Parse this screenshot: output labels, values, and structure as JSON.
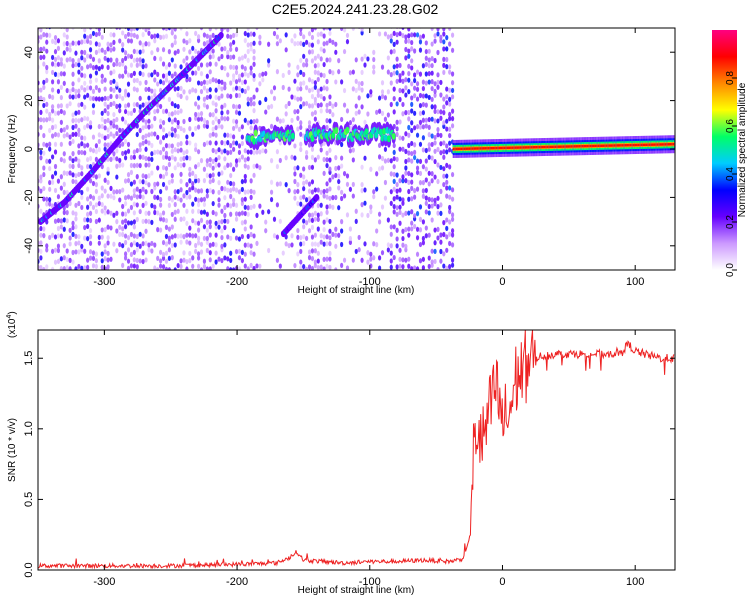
{
  "figure_title": "C2E5.2024.241.23.28.G02",
  "chart_data": [
    {
      "type": "heatmap",
      "title": "",
      "xlabel": "Height of straight line (km)",
      "ylabel": "Frequency (Hz)",
      "xlim": [
        -350,
        130
      ],
      "ylim": [
        -50,
        50
      ],
      "x_ticks": [
        -300,
        -200,
        -100,
        0,
        100
      ],
      "x_tick_labels": [
        "-300",
        "-200",
        "-100",
        "0",
        "100"
      ],
      "y_ticks": [
        -40,
        -20,
        0,
        20,
        40
      ],
      "y_tick_labels": [
        "-40",
        "-20",
        "0",
        "20",
        "40"
      ],
      "grid": false,
      "colorbar": {
        "label": "Normalized spectral amplitude",
        "range": [
          0,
          1
        ],
        "ticks": [
          0.0,
          0.2,
          0.4,
          0.6,
          0.8
        ],
        "tick_labels": [
          "0.0",
          "0.2",
          "0.4",
          "0.6",
          "0.8"
        ],
        "colors": [
          "#ffffff",
          "#cc99ff",
          "#6600ff",
          "#0000ff",
          "#00ccff",
          "#00ff66",
          "#ffff00",
          "#ff8800",
          "#ff0000",
          "#ff0080"
        ]
      },
      "features": [
        {
          "name": "diagonal streak",
          "x": [
            -348,
            -330,
            -310,
            -290,
            -270,
            -250,
            -230,
            -212
          ],
          "y": [
            -30,
            -22,
            -10,
            3,
            15,
            26,
            37,
            47
          ],
          "amplitude": 0.35
        },
        {
          "name": "band segment",
          "x": [
            -192,
            -158
          ],
          "y": [
            5,
            5
          ],
          "amplitude": 0.45
        },
        {
          "name": "band segment",
          "x": [
            -148,
            -82
          ],
          "y": [
            6,
            6
          ],
          "amplitude": 0.45
        },
        {
          "name": "faint diagonal",
          "x": [
            -165,
            -140
          ],
          "y": [
            -35,
            -20
          ],
          "amplitude": 0.2
        },
        {
          "name": "constant tone",
          "x": [
            -37,
            130
          ],
          "y": [
            0,
            2
          ],
          "amplitude": 0.75
        }
      ]
    },
    {
      "type": "line",
      "title": "",
      "xlabel": "Height of straight line (km)",
      "ylabel": "SNR (10 * v/v)",
      "y_multiplier_label": "(x10",
      "y_multiplier_exponent": "4",
      "y_multiplier_close": ")",
      "xlim": [
        -350,
        130
      ],
      "ylim": [
        0,
        1.7
      ],
      "x_ticks": [
        -300,
        -200,
        -100,
        0,
        100
      ],
      "x_tick_labels": [
        "-300",
        "-200",
        "-100",
        "0",
        "100"
      ],
      "y_ticks": [
        0.0,
        0.5,
        1.0,
        1.5
      ],
      "y_tick_labels": [
        "0.0",
        "0.5",
        "1.0",
        "1.5"
      ],
      "grid": false,
      "series": [
        {
          "color": "#ee2222",
          "x": [
            -350,
            -300,
            -250,
            -200,
            -170,
            -160,
            -155,
            -150,
            -120,
            -100,
            -80,
            -60,
            -40,
            -30,
            -24,
            -22,
            -20,
            -15,
            -10,
            -5,
            0,
            5,
            10,
            20,
            30,
            40,
            60,
            80,
            90,
            95,
            100,
            110,
            120,
            130
          ],
          "y": [
            0.03,
            0.03,
            0.03,
            0.04,
            0.05,
            0.09,
            0.13,
            0.07,
            0.05,
            0.06,
            0.06,
            0.07,
            0.06,
            0.08,
            0.25,
            0.8,
            1.0,
            0.9,
            1.1,
            1.3,
            1.05,
            1.1,
            1.35,
            1.48,
            1.52,
            1.53,
            1.53,
            1.53,
            1.55,
            1.6,
            1.55,
            1.52,
            1.5,
            1.5
          ]
        }
      ]
    }
  ]
}
